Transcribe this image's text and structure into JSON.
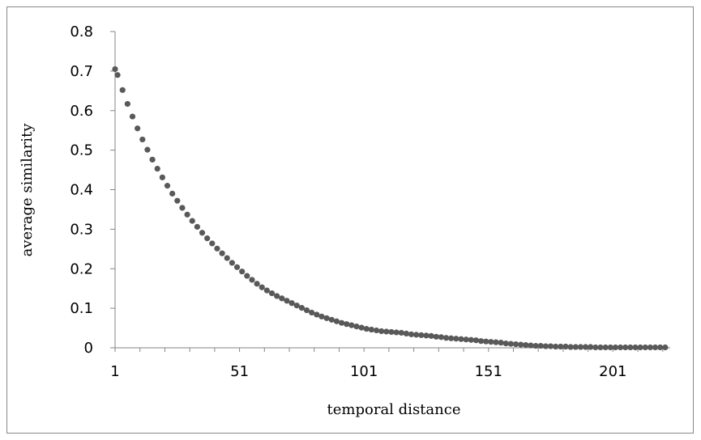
{
  "chart_data": {
    "type": "scatter",
    "xlabel": "temporal distance",
    "ylabel": "average similarity",
    "xlim": [
      1,
      224
    ],
    "ylim": [
      0,
      0.8
    ],
    "x_ticks": [
      1,
      51,
      101,
      151,
      201
    ],
    "y_ticks": [
      0,
      0.1,
      0.2,
      0.3,
      0.4,
      0.5,
      0.6,
      0.7,
      0.8
    ],
    "y_tick_labels": [
      "0",
      "0.1",
      "0.2",
      "0.3",
      "0.4",
      "0.5",
      "0.6",
      "0.7",
      "0.8"
    ],
    "marker_color": "#595959",
    "grid": false,
    "legend": false,
    "series": [
      {
        "x": [
          1,
          2,
          4,
          6,
          8,
          10,
          12,
          14,
          16,
          18,
          20,
          22,
          24,
          26,
          28,
          30,
          32,
          34,
          36,
          38,
          40,
          42,
          44,
          46,
          48,
          50,
          52,
          54,
          56,
          58,
          60,
          62,
          64,
          66,
          68,
          70,
          72,
          74,
          76,
          78,
          80,
          82,
          84,
          86,
          88,
          90,
          92,
          94,
          96,
          98,
          100,
          102,
          104,
          106,
          108,
          110,
          112,
          114,
          116,
          118,
          120,
          122,
          124,
          126,
          128,
          130,
          132,
          134,
          136,
          138,
          140,
          142,
          144,
          146,
          148,
          150,
          152,
          154,
          156,
          158,
          160,
          162,
          164,
          166,
          168,
          170,
          172,
          174,
          176,
          178,
          180,
          182,
          184,
          186,
          188,
          190,
          192,
          194,
          196,
          198,
          200,
          202,
          204,
          206,
          208,
          210,
          212,
          214,
          216,
          218,
          220,
          222
        ],
        "y": [
          0.705,
          0.69,
          0.652,
          0.617,
          0.585,
          0.555,
          0.527,
          0.501,
          0.476,
          0.453,
          0.431,
          0.41,
          0.39,
          0.372,
          0.354,
          0.337,
          0.321,
          0.306,
          0.291,
          0.277,
          0.264,
          0.251,
          0.239,
          0.227,
          0.215,
          0.204,
          0.193,
          0.182,
          0.172,
          0.162,
          0.153,
          0.145,
          0.138,
          0.131,
          0.125,
          0.119,
          0.113,
          0.107,
          0.101,
          0.095,
          0.089,
          0.084,
          0.079,
          0.075,
          0.071,
          0.067,
          0.063,
          0.06,
          0.057,
          0.054,
          0.051,
          0.048,
          0.046,
          0.044,
          0.042,
          0.041,
          0.04,
          0.039,
          0.038,
          0.036,
          0.034,
          0.033,
          0.032,
          0.031,
          0.03,
          0.028,
          0.027,
          0.025,
          0.024,
          0.023,
          0.022,
          0.021,
          0.02,
          0.019,
          0.017,
          0.016,
          0.015,
          0.014,
          0.013,
          0.011,
          0.01,
          0.009,
          0.008,
          0.007,
          0.006,
          0.005,
          0.005,
          0.004,
          0.004,
          0.003,
          0.003,
          0.003,
          0.002,
          0.002,
          0.002,
          0.002,
          0.002,
          0.001,
          0.001,
          0.001,
          0.001,
          0.001,
          0.001,
          0.001,
          0.001,
          0.001,
          0.001,
          0.001,
          0.001,
          0.001,
          0.001,
          0.001
        ]
      }
    ]
  }
}
